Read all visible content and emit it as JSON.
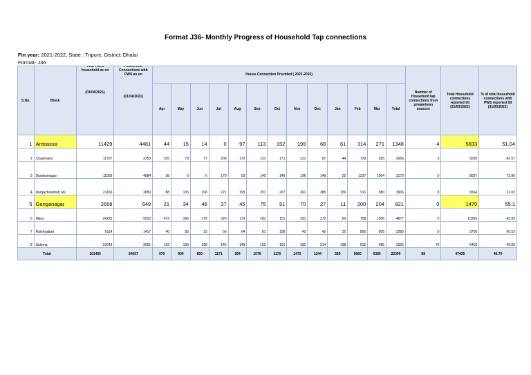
{
  "title": "Format J36- Monthly Progress of Household Tap connections",
  "meta": {
    "line1_bold": "Fin year: ",
    "line1_rest": "2021-2022, State : Tripure, District: Dhalai",
    "format_label": "Format- J36"
  },
  "headers": {
    "sno": "S.No.",
    "block": "Block",
    "total_rural_top": "Total Rural household as on",
    "total_rural_date": "(01/04/2021)",
    "hh_conn_top": "Household Connections with PWS as on",
    "hh_conn_date": "(01/04/2021)",
    "house_connection": "House Connection Provided ( 2021-2022)",
    "months": [
      "Apr",
      "May",
      "Jun",
      "Jul",
      "Aug",
      "Sep",
      "Oct",
      "Nov",
      "Dec",
      "Jan",
      "Feb",
      "Mar",
      "Total"
    ],
    "private_sources": "Number of Household tap connections from private/own sources",
    "total_reported": "Total Household connections reported till (31/03/2022)",
    "pct_total": "% of total household connections with PWS reported till (31/03/2022)"
  },
  "rows": [
    {
      "sno": "1",
      "block": "Ambassa",
      "rural": "11429",
      "conn": "4481",
      "months": [
        "44",
        "15",
        "14",
        "0",
        "97",
        "113",
        "152",
        "199",
        "68",
        "61",
        "314",
        "271",
        "1348"
      ],
      "private": "4",
      "reported": "5833",
      "pct": "51.04",
      "style": "big",
      "hl_block": true,
      "hl_reported": true
    },
    {
      "sno": "2",
      "block": "Chawmanu",
      "rural": "11767",
      "conn": "2353",
      "months": [
        "105",
        "78",
        "77",
        "206",
        "172",
        "131",
        "171",
        "231",
        "87",
        "44",
        "729",
        "625",
        "2656"
      ],
      "private": "0",
      "reported": "5009",
      "pct": "42.57",
      "style": "small",
      "hl_block": false,
      "hl_reported": false
    },
    {
      "sno": "3",
      "block": "Dumburnagar",
      "rural": "11059",
      "conn": "4884",
      "months": [
        "38",
        "0",
        "6",
        "179",
        "53",
        "140",
        "149",
        "196",
        "149",
        "22",
        "1237",
        "1004",
        "3173"
      ],
      "private": "0",
      "reported": "8057",
      "pct": "72.86",
      "style": "mid",
      "hl_block": false,
      "hl_reported": false
    },
    {
      "sno": "4",
      "block": "Durgachowmuh ani",
      "rural": "21160",
      "conn": "2650",
      "months": [
        "88",
        "105",
        "196",
        "221",
        "195",
        "201",
        "207",
        "261",
        "385",
        "156",
        "911",
        "980",
        "3906"
      ],
      "private": "8",
      "reported": "6564",
      "pct": "31.02",
      "style": "durg",
      "hl_block": false,
      "hl_reported": false
    },
    {
      "sno": "5",
      "block": "Ganganagar",
      "rural": "2668",
      "conn": "649",
      "months": [
        "21",
        "34",
        "46",
        "37",
        "45",
        "75",
        "51",
        "70",
        "27",
        "11",
        "200",
        "204",
        "821"
      ],
      "private": "0",
      "reported": "1470",
      "pct": "55.1",
      "style": "big",
      "hl_block": true,
      "hl_reported": true
    },
    {
      "sno": "6",
      "block": "Manu",
      "rural": "24225",
      "conn": "5522",
      "months": [
        "472",
        "396",
        "278",
        "326",
        "179",
        "183",
        "151",
        "291",
        "272",
        "65",
        "758",
        "1506",
        "4877"
      ],
      "private": "0",
      "reported": "10399",
      "pct": "42.93",
      "style": "small",
      "hl_block": false,
      "hl_reported": false
    },
    {
      "sno": "7",
      "block": "Raishyabari",
      "rural": "6114",
      "conn": "1417",
      "months": [
        "40",
        "83",
        "15",
        "56",
        "64",
        "81",
        "128",
        "42",
        "42",
        "32",
        "895",
        "805",
        "2283"
      ],
      "private": "0",
      "reported": "3700",
      "pct": "60.52",
      "style": "small",
      "hl_block": false,
      "hl_reported": false
    },
    {
      "sno": "8",
      "block": "Salema",
      "rural": "13043",
      "conn": "3001",
      "months": [
        "162",
        "193",
        "168",
        "146",
        "149",
        "152",
        "161",
        "182",
        "214",
        "198",
        "616",
        "985",
        "3326"
      ],
      "private": "76",
      "reported": "6403",
      "pct": "49.09",
      "style": "small",
      "hl_block": false,
      "hl_reported": false
    }
  ],
  "total": {
    "label": "Total",
    "rural": "101465",
    "conn": "24957",
    "months": [
      "970",
      "904",
      "800",
      "1171",
      "954",
      "1076",
      "1170",
      "1472",
      "1244",
      "589",
      "5660",
      "6380",
      "22390"
    ],
    "private": "88",
    "reported": "47435",
    "pct": "46.75"
  },
  "colors": {
    "header_bg": "#dde6f2",
    "border": "#9db3d6",
    "highlight": "#ffff66"
  }
}
